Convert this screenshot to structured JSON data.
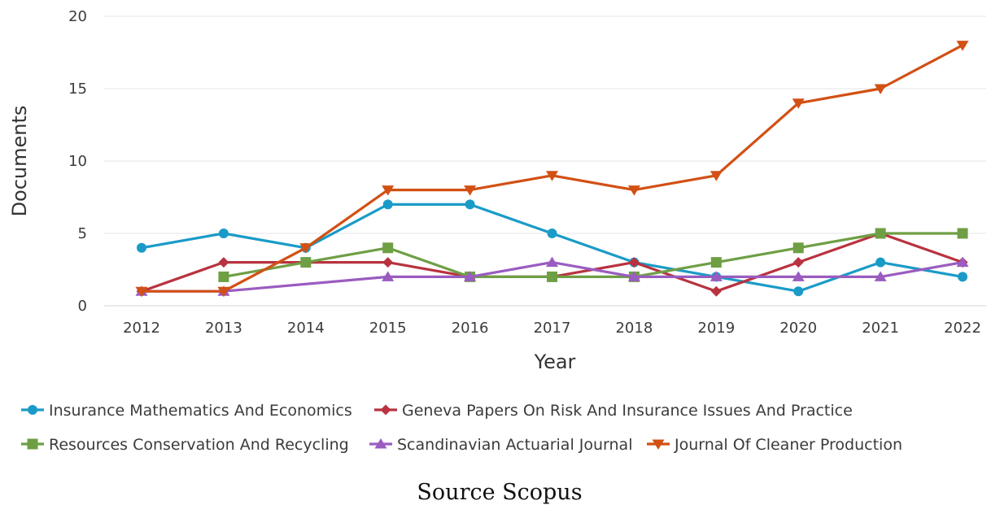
{
  "chart_data": {
    "type": "line",
    "xlabel": "Year",
    "ylabel": "Documents",
    "categories": [
      "2012",
      "2013",
      "2014",
      "2015",
      "2016",
      "2017",
      "2018",
      "2019",
      "2020",
      "2021",
      "2022"
    ],
    "ylim": [
      0,
      20
    ],
    "yticks": [
      0,
      5,
      10,
      15,
      20
    ],
    "grid": "horizontal",
    "legend_position": "bottom",
    "series": [
      {
        "name": "Insurance Mathematics And Economics",
        "color": "#1a9bc7",
        "marker": "circle",
        "values": [
          4,
          5,
          4,
          7,
          7,
          5,
          3,
          2,
          1,
          3,
          2
        ]
      },
      {
        "name": "Geneva Papers On Risk And Insurance Issues And Practice",
        "color": "#b8333f",
        "marker": "diamond",
        "values": [
          1,
          3,
          3,
          3,
          2,
          2,
          3,
          1,
          3,
          5,
          3
        ]
      },
      {
        "name": "Resources Conservation And Recycling",
        "color": "#6e9f44",
        "marker": "square",
        "values": [
          null,
          2,
          3,
          4,
          2,
          2,
          2,
          3,
          4,
          5,
          5
        ]
      },
      {
        "name": "Scandinavian Actuarial Journal",
        "color": "#9a5cc0",
        "marker": "triangle-up",
        "values": [
          1,
          1,
          null,
          2,
          2,
          3,
          2,
          2,
          2,
          2,
          3
        ]
      },
      {
        "name": "Journal Of Cleaner Production",
        "color": "#d25014",
        "marker": "triangle-down",
        "values": [
          1,
          1,
          4,
          8,
          8,
          9,
          8,
          9,
          14,
          15,
          18
        ]
      }
    ]
  },
  "caption": "Source Scopus"
}
